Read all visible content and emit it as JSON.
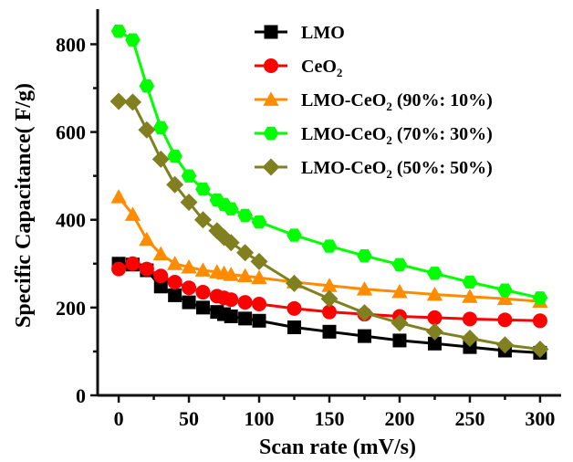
{
  "chart_data": {
    "type": "line",
    "xlabel": "Scan rate (mV/s)",
    "ylabel": "Specific Capacitance( F/g)",
    "xlim": [
      -15,
      315
    ],
    "ylim": [
      0,
      880
    ],
    "xticks": [
      0,
      50,
      100,
      150,
      200,
      250,
      300
    ],
    "yticks": [
      0,
      200,
      400,
      600,
      800
    ],
    "legend_position": "top-right",
    "series": [
      {
        "name": "LMO",
        "legend": {
          "main": "LMO",
          "sub": "",
          "rest": ""
        },
        "color": "#000000",
        "marker": "square",
        "x": [
          0,
          10,
          20,
          30,
          40,
          50,
          60,
          70,
          75,
          80,
          90,
          100,
          125,
          150,
          175,
          200,
          225,
          250,
          275,
          300
        ],
        "y": [
          300,
          298,
          285,
          248,
          228,
          212,
          200,
          190,
          185,
          180,
          175,
          170,
          155,
          145,
          135,
          125,
          118,
          110,
          102,
          97
        ]
      },
      {
        "name": "CeO2",
        "legend": {
          "main": "CeO",
          "sub": "2",
          "rest": ""
        },
        "color": "#ff0000",
        "marker": "circle",
        "x": [
          0,
          10,
          20,
          30,
          40,
          50,
          60,
          70,
          75,
          80,
          90,
          100,
          125,
          150,
          175,
          200,
          225,
          250,
          275,
          300
        ],
        "y": [
          288,
          300,
          288,
          272,
          258,
          245,
          235,
          226,
          222,
          218,
          212,
          208,
          198,
          190,
          185,
          180,
          177,
          174,
          172,
          170
        ]
      },
      {
        "name": "LMO-CeO2 (90%: 10%)",
        "legend": {
          "main": "LMO-CeO",
          "sub": "2",
          "rest": " (90%: 10%)"
        },
        "color": "#ff8c00",
        "marker": "triangle",
        "x": [
          0,
          10,
          20,
          30,
          40,
          50,
          60,
          70,
          75,
          80,
          90,
          100,
          125,
          150,
          175,
          200,
          225,
          250,
          275,
          300
        ],
        "y": [
          452,
          412,
          355,
          322,
          300,
          292,
          285,
          281,
          278,
          275,
          272,
          268,
          258,
          250,
          242,
          236,
          230,
          225,
          220,
          214
        ]
      },
      {
        "name": "LMO-CeO2 (70%: 30%)",
        "legend": {
          "main": "LMO-CeO",
          "sub": "2",
          "rest": " (70%: 30%)"
        },
        "color": "#00ff00",
        "marker": "hexagon",
        "x": [
          0,
          10,
          20,
          30,
          40,
          50,
          60,
          70,
          75,
          80,
          90,
          100,
          125,
          150,
          175,
          200,
          225,
          250,
          275,
          300
        ],
        "y": [
          830,
          810,
          705,
          610,
          545,
          500,
          470,
          445,
          435,
          425,
          410,
          395,
          365,
          340,
          318,
          298,
          278,
          258,
          240,
          222
        ]
      },
      {
        "name": "LMO-CeO2 (50%: 50%)",
        "legend": {
          "main": "LMO-CeO",
          "sub": "2",
          "rest": " (50%: 50%)"
        },
        "color": "#808020",
        "marker": "diamond",
        "x": [
          0,
          10,
          20,
          30,
          40,
          50,
          60,
          70,
          75,
          80,
          90,
          100,
          125,
          150,
          175,
          200,
          225,
          250,
          275,
          300
        ],
        "y": [
          670,
          668,
          605,
          538,
          480,
          440,
          400,
          375,
          360,
          348,
          325,
          305,
          255,
          220,
          188,
          165,
          145,
          130,
          115,
          105
        ]
      }
    ]
  }
}
